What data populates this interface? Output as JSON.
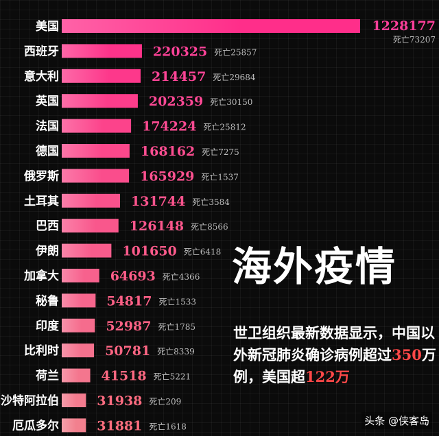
{
  "chart_data": {
    "type": "bar",
    "orientation": "horizontal",
    "categories": [
      "美国",
      "西班牙",
      "意大利",
      "英国",
      "法国",
      "德国",
      "俄罗斯",
      "土耳其",
      "巴西",
      "伊朗",
      "加拿大",
      "秘鲁",
      "印度",
      "比利时",
      "荷兰",
      "沙特阿拉伯",
      "厄瓜多尔"
    ],
    "values": [
      1228177,
      220325,
      214457,
      202359,
      174224,
      168162,
      165929,
      131744,
      126148,
      101650,
      64693,
      54817,
      52987,
      50781,
      41518,
      31938,
      31881
    ],
    "deaths": [
      "死亡73207",
      "死亡25857",
      "死亡29684",
      "死亡30150",
      "死亡25812",
      "死亡7275",
      "死亡1537",
      "死亡3584",
      "死亡8566",
      "死亡6418",
      "死亡4366",
      "死亡1533",
      "死亡1785",
      "死亡8339",
      "死亡5221",
      "死亡209",
      "死亡1618"
    ],
    "colors": {
      "high": "#ff2e8a",
      "low": "#f2808e",
      "value_high": "#ff3f9a",
      "value_low": "#ff6f7f"
    }
  },
  "headline": "海外疫情",
  "subtext": {
    "part1": "世卫组织最新数据显示，中国以外新冠肺炎确诊病例超过",
    "num1": "350",
    "part2": "万例，美国超",
    "num2": "122万"
  },
  "watermark": "头条 @侠客岛"
}
